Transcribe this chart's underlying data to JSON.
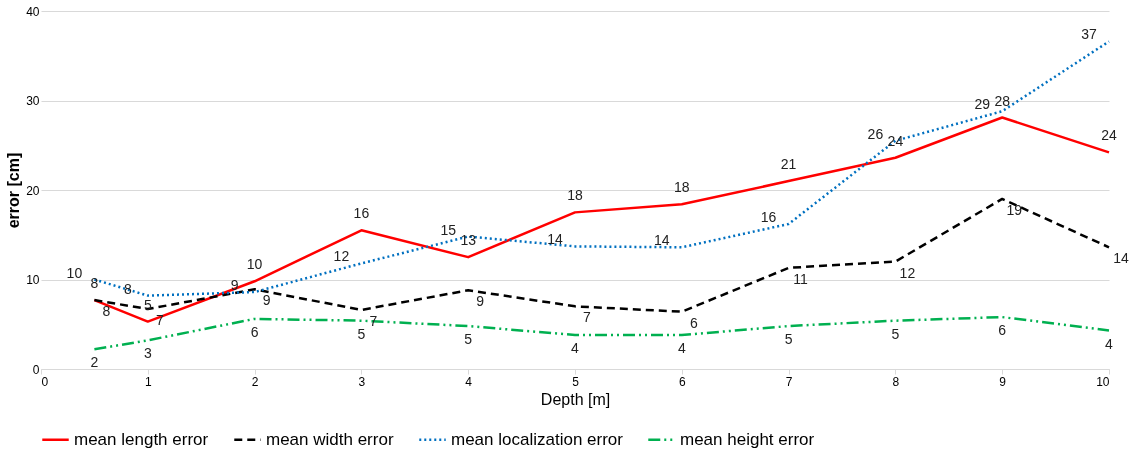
{
  "chart_data": {
    "type": "line",
    "xlabel": "Depth [m]",
    "ylabel": "error  [cm]",
    "x": [
      0.5,
      1,
      2,
      3,
      4,
      5,
      6,
      7,
      8,
      9,
      10
    ],
    "xlim": [
      0,
      10
    ],
    "xticks": [
      0,
      1,
      2,
      3,
      4,
      5,
      6,
      7,
      8,
      9,
      10
    ],
    "ylim": [
      0,
      40
    ],
    "yticks": [
      0,
      10,
      20,
      30,
      40
    ],
    "grid": "y",
    "legend": "bottom",
    "marker": "none",
    "series": [
      {
        "name": "mean length error",
        "color": "#ff0000",
        "line_style": "solid",
        "values": [
          7.7,
          5.3,
          9.8,
          15.5,
          12.5,
          17.5,
          18.4,
          21.0,
          23.6,
          28.1,
          24.2
        ],
        "value_labels": [
          "8",
          "5",
          "10",
          "16",
          "13",
          "18",
          "18",
          "21",
          "24",
          "28",
          "24"
        ]
      },
      {
        "name": "mean width error",
        "color": "#000000",
        "line_style": "dashed",
        "values": [
          7.7,
          6.7,
          8.9,
          6.6,
          8.8,
          7.0,
          6.4,
          11.3,
          12.0,
          19.0,
          13.6
        ],
        "value_labels": [
          "8",
          "7",
          "9",
          "7",
          "9",
          "7",
          "6",
          "11",
          "12",
          "19",
          "14"
        ]
      },
      {
        "name": "mean localization error",
        "color": "#0070c0",
        "line_style": "dotted",
        "values": [
          10.0,
          8.2,
          8.6,
          11.8,
          14.8,
          13.7,
          13.6,
          16.2,
          25.5,
          28.8,
          36.6
        ],
        "value_labels": [
          "10",
          "8",
          "9",
          "12",
          "15",
          "14",
          "14",
          "16",
          "26",
          "29",
          "37"
        ]
      },
      {
        "name": "mean height error",
        "color": "#00b050",
        "line_style": "dashdot",
        "values": [
          2.2,
          3.2,
          5.6,
          5.4,
          4.8,
          3.8,
          3.8,
          4.8,
          5.4,
          5.8,
          4.3
        ],
        "value_labels": [
          "2",
          "3",
          "6",
          "5",
          "5",
          "4",
          "4",
          "5",
          "5",
          "6",
          "4"
        ]
      }
    ]
  }
}
